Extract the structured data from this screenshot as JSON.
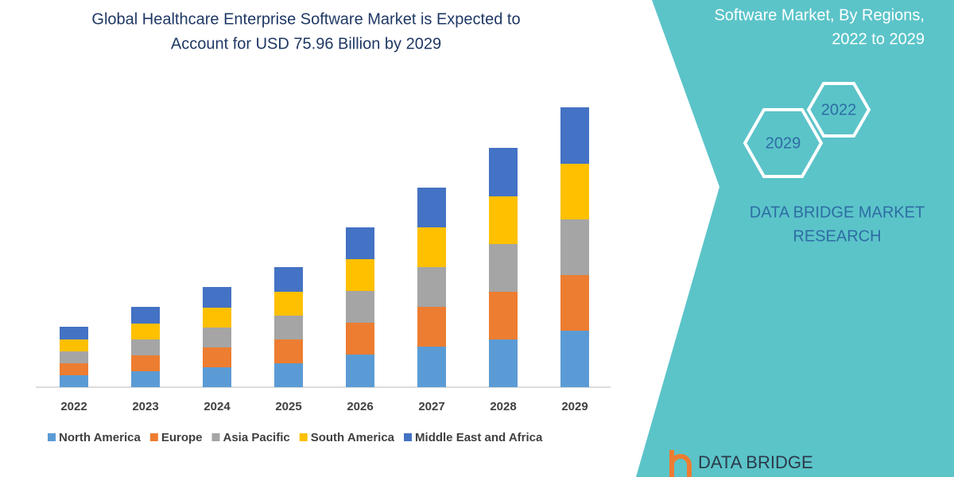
{
  "chart_data": {
    "type": "stacked_bar",
    "title": [
      "Global Healthcare Enterprise Software Market is Expected to",
      "Account for USD 75.96 Billion by 2029"
    ],
    "categories": [
      "2022",
      "2023",
      "2024",
      "2025",
      "2026",
      "2027",
      "2028",
      "2029"
    ],
    "series": [
      {
        "name": "North America",
        "color": "#5b9bd5",
        "values": [
          15,
          20,
          25,
          30,
          41,
          51,
          60,
          71
        ]
      },
      {
        "name": "Europe",
        "color": "#ed7d31",
        "values": [
          15,
          20,
          25,
          30,
          40,
          50,
          60,
          70
        ]
      },
      {
        "name": "Asia Pacific",
        "color": "#a5a5a5",
        "values": [
          15,
          20,
          25,
          30,
          40,
          50,
          60,
          70
        ]
      },
      {
        "name": "South America",
        "color": "#ffc000",
        "values": [
          15,
          20,
          25,
          30,
          40,
          50,
          60,
          70
        ]
      },
      {
        "name": "Middle East and Africa",
        "color": "#4472c4",
        "values": [
          16,
          21,
          26,
          31,
          40,
          50,
          61,
          71
        ]
      }
    ],
    "ylim": [
      0,
      360
    ]
  },
  "sidebar": {
    "heading": [
      "Software Market, By Regions,",
      "2022 to 2029"
    ],
    "hexagons": [
      "2022",
      "2029"
    ],
    "brand": [
      "DATA BRIDGE MARKET",
      "RESEARCH"
    ],
    "logo": "DATA BRIDGE"
  }
}
